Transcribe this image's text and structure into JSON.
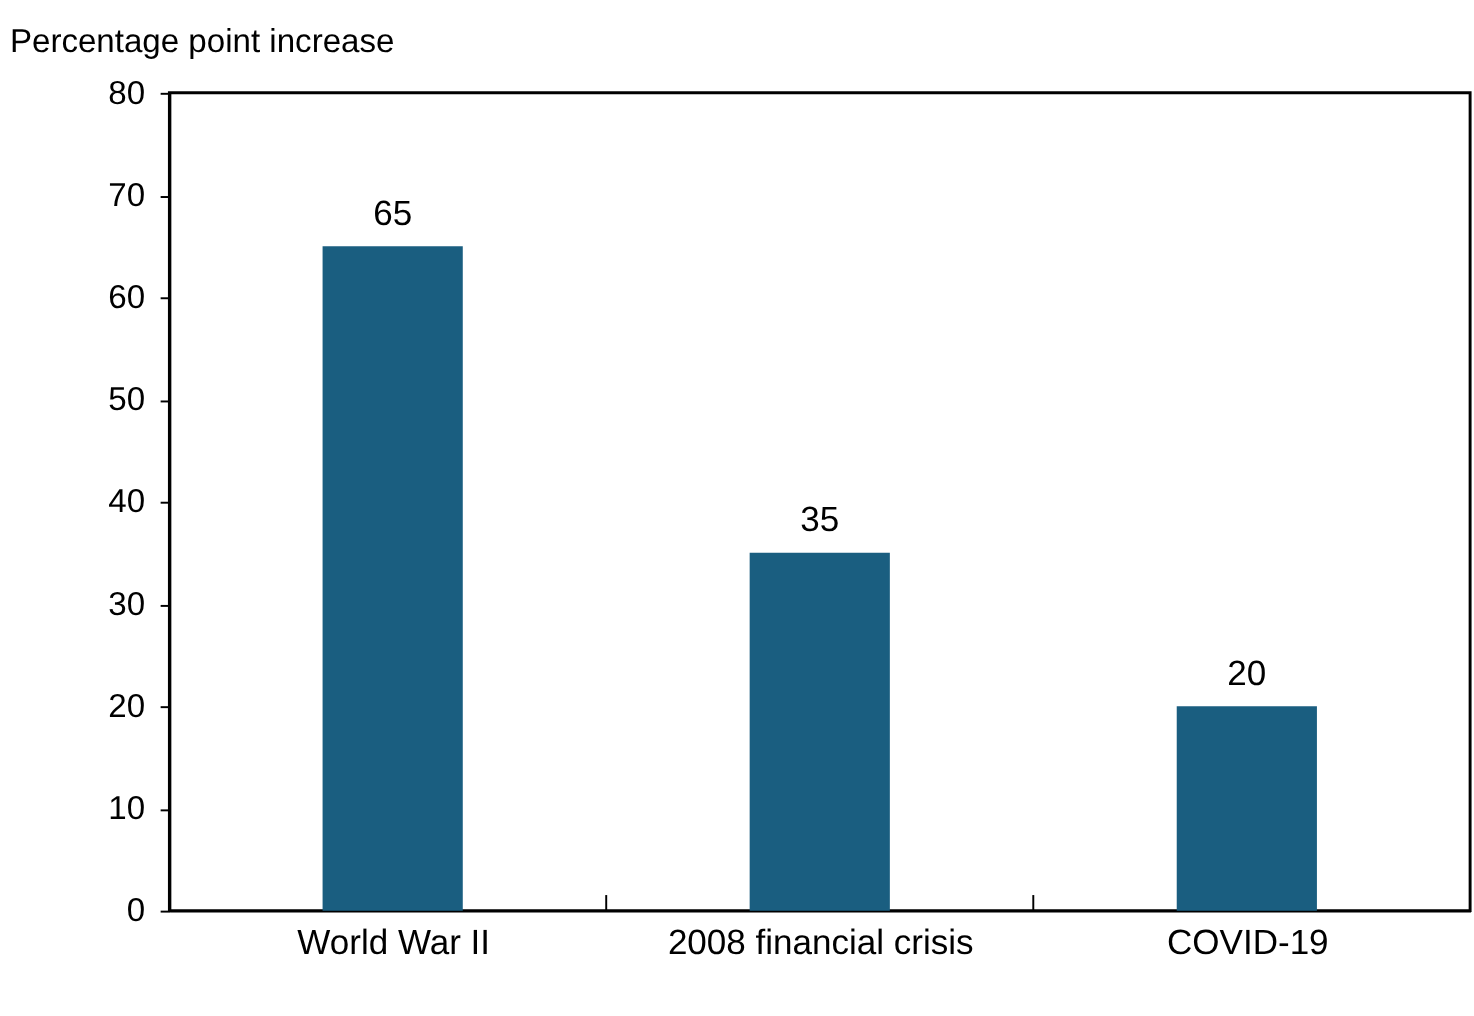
{
  "chart_data": {
    "type": "bar",
    "ylabel": "Percentage point increase",
    "categories": [
      "World War II",
      "2008 financial crisis",
      "COVID-19"
    ],
    "values": [
      65,
      35,
      20
    ],
    "color": "#1a5e80",
    "ylim": [
      0,
      80
    ],
    "yticks": [
      0,
      10,
      20,
      30,
      40,
      50,
      60,
      70,
      80
    ],
    "data_labels": true,
    "grid": false
  }
}
